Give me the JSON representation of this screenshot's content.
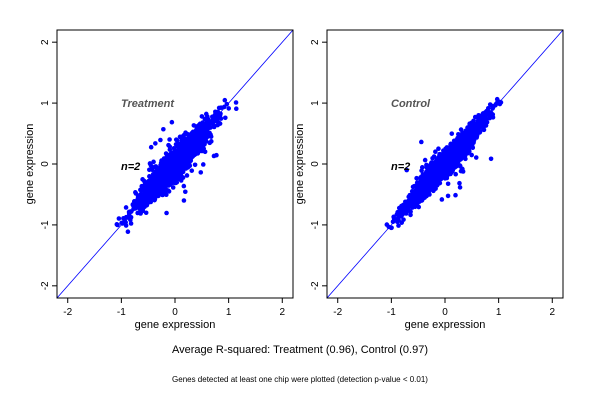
{
  "footer": {
    "summary": "Average R-squared: Treatment (0.96), Control (0.97)",
    "note": "Genes detected at least one chip were plotted (detection p-value < 0.01)"
  },
  "colors": {
    "points": "#0000ff",
    "fit_line": "#0000ff",
    "panel_label": "#555555"
  },
  "chart_data": [
    {
      "type": "scatter",
      "panel_label": "Treatment",
      "n_label": "n=2",
      "xlabel": "gene expression",
      "ylabel": "gene expression",
      "xlim": [
        -2.2,
        2.2
      ],
      "ylim": [
        -2.2,
        2.2
      ],
      "xticks": [
        -2,
        -1,
        0,
        1,
        2
      ],
      "yticks": [
        -2,
        -1,
        0,
        1,
        2
      ],
      "reference_line": "y = x",
      "point_cloud": {
        "range": [
          -1.05,
          1.25
        ],
        "spread": 0.09,
        "outlier_spread": 0.3
      },
      "grid": false,
      "legend": "none"
    },
    {
      "type": "scatter",
      "panel_label": "Control",
      "n_label": "n=2",
      "xlabel": "gene expression",
      "ylabel": "gene expression",
      "xlim": [
        -2.2,
        2.2
      ],
      "ylim": [
        -2.2,
        2.2
      ],
      "xticks": [
        -2,
        -1,
        0,
        1,
        2
      ],
      "yticks": [
        -2,
        -1,
        0,
        1,
        2
      ],
      "reference_line": "y = x",
      "point_cloud": {
        "range": [
          -1.05,
          1.25
        ],
        "spread": 0.075,
        "outlier_spread": 0.22
      },
      "grid": false,
      "legend": "none"
    }
  ]
}
